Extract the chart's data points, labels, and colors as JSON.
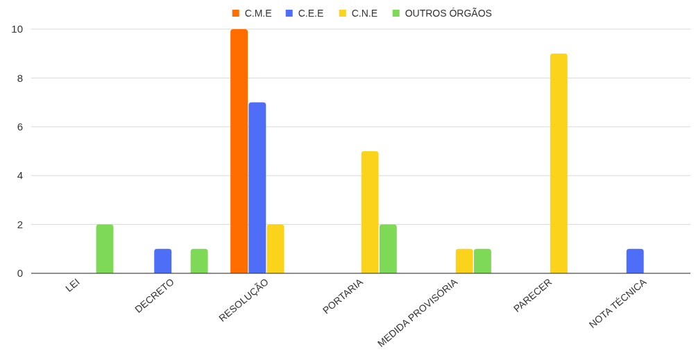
{
  "chart_data": {
    "type": "bar",
    "categories": [
      "LEI",
      "DECRETO",
      "RESOLUÇÃO",
      "PORTARIA",
      "MEDIDA PROVISÓRIA",
      "PARECER",
      "NOTA TÉCNICA"
    ],
    "series": [
      {
        "name": "C.M.E",
        "color": "#ff6d01",
        "values": [
          null,
          null,
          10,
          null,
          null,
          null,
          null
        ]
      },
      {
        "name": "C.E.E",
        "color": "#4e6ef8",
        "values": [
          null,
          1,
          7,
          null,
          null,
          null,
          1
        ]
      },
      {
        "name": "C.N.E",
        "color": "#fcd31b",
        "values": [
          null,
          null,
          2,
          5,
          1,
          9,
          null
        ]
      },
      {
        "name": "OUTROS ÓRGÃOS",
        "color": "#7ed957",
        "values": [
          2,
          1,
          null,
          2,
          1,
          null,
          null
        ]
      }
    ],
    "ylim": [
      0,
      10
    ],
    "yticks": [
      0,
      2,
      4,
      6,
      8,
      10
    ],
    "grid": "y",
    "legend": "top"
  }
}
